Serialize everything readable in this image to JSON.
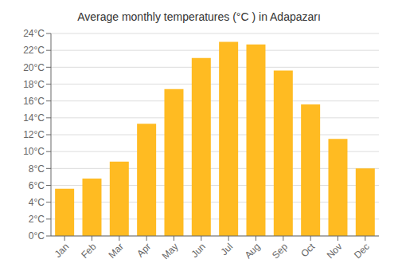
{
  "chart_data": {
    "type": "bar",
    "title": "Average monthly temperatures (°C ) in Adapazarı",
    "categories": [
      "Jan",
      "Feb",
      "Mar",
      "Apr",
      "May",
      "Jun",
      "Jul",
      "Aug",
      "Sep",
      "Oct",
      "Nov",
      "Dec"
    ],
    "values": [
      5.6,
      6.8,
      8.8,
      13.3,
      17.4,
      21.1,
      23.0,
      22.7,
      19.6,
      15.6,
      11.5,
      8.0
    ],
    "color": "#FFBB22",
    "ylim": [
      0,
      24
    ],
    "yticks": [
      {
        "value": 0,
        "label": "0°C"
      },
      {
        "value": 2,
        "label": "2°C"
      },
      {
        "value": 4,
        "label": "4°C"
      },
      {
        "value": 6,
        "label": "6°C"
      },
      {
        "value": 8,
        "label": "8°C"
      },
      {
        "value": 10,
        "label": "10°C"
      },
      {
        "value": 12,
        "label": "12°C"
      },
      {
        "value": 14,
        "label": "14°C"
      },
      {
        "value": 16,
        "label": "16°C"
      },
      {
        "value": 18,
        "label": "18°C"
      },
      {
        "value": 20,
        "label": "20°C"
      },
      {
        "value": 22,
        "label": "22°C"
      },
      {
        "value": 24,
        "label": "24°C"
      }
    ],
    "grid": true
  }
}
